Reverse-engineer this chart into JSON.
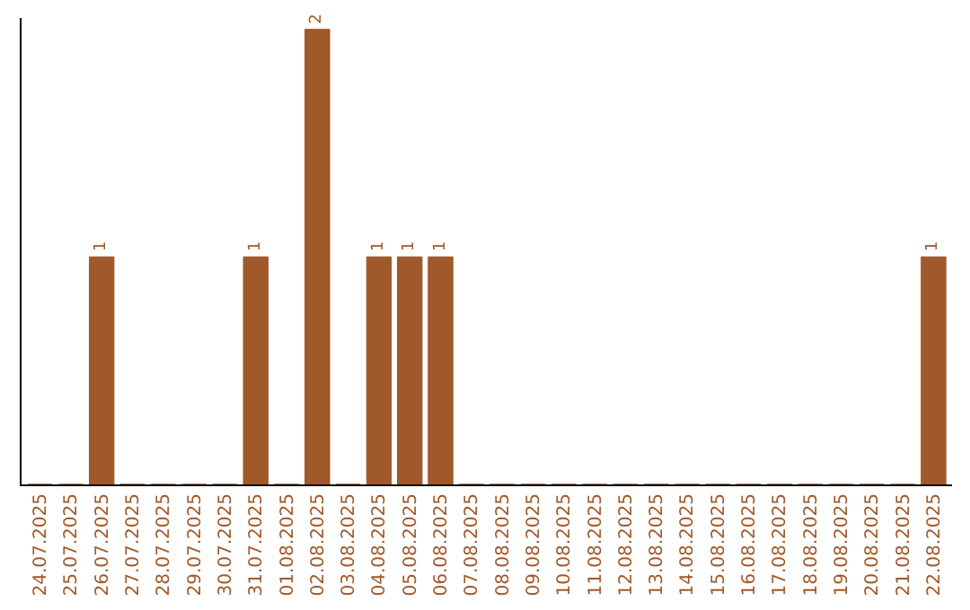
{
  "chart_data": {
    "type": "bar",
    "categories": [
      "24.07.2025",
      "25.07.2025",
      "26.07.2025",
      "27.07.2025",
      "28.07.2025",
      "29.07.2025",
      "30.07.2025",
      "31.07.2025",
      "01.08.2025",
      "02.08.2025",
      "03.08.2025",
      "04.08.2025",
      "05.08.2025",
      "06.08.2025",
      "07.08.2025",
      "08.08.2025",
      "09.08.2025",
      "10.08.2025",
      "11.08.2025",
      "12.08.2025",
      "13.08.2025",
      "14.08.2025",
      "15.08.2025",
      "16.08.2025",
      "17.08.2025",
      "18.08.2025",
      "19.08.2025",
      "20.08.2025",
      "21.08.2025",
      "22.08.2025"
    ],
    "values": [
      0,
      0,
      1,
      0,
      0,
      0,
      0,
      1,
      0,
      2,
      0,
      1,
      1,
      1,
      0,
      0,
      0,
      0,
      0,
      0,
      0,
      0,
      0,
      0,
      0,
      0,
      0,
      0,
      0,
      1
    ],
    "value_labels": [
      null,
      null,
      "1",
      null,
      null,
      null,
      null,
      "1",
      null,
      "2",
      null,
      "1",
      "1",
      "1",
      null,
      null,
      null,
      null,
      null,
      null,
      null,
      null,
      null,
      null,
      null,
      null,
      null,
      null,
      null,
      "1"
    ],
    "color": "#a0592a",
    "ylim": [
      0,
      2.05
    ],
    "tick_labels": "x"
  }
}
